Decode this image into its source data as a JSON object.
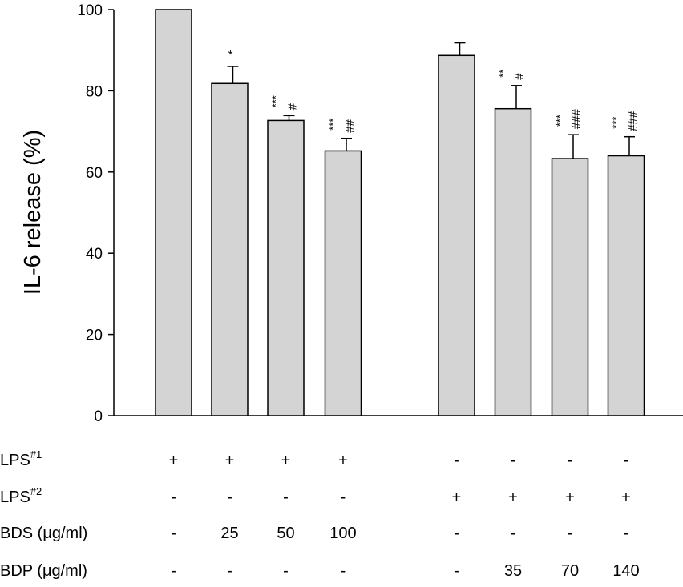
{
  "chart_data": {
    "type": "bar",
    "ylabel": "IL-6 release (%)",
    "ylim": [
      0,
      100
    ],
    "yticks": [
      "0",
      "20",
      "40",
      "60",
      "80",
      "100"
    ],
    "bar_color": "#d4d4d4",
    "grid": false,
    "groups": [
      {
        "bars": [
          {
            "value": 100,
            "error": 0,
            "sig_star": "",
            "sig_hash": ""
          },
          {
            "value": 81.8,
            "error": 4.2,
            "sig_star": "*",
            "sig_hash": ""
          },
          {
            "value": 72.7,
            "error": 1.2,
            "sig_star": "***",
            "sig_hash": "#"
          },
          {
            "value": 65.2,
            "error": 3.1,
            "sig_star": "***",
            "sig_hash": "##"
          }
        ]
      },
      {
        "bars": [
          {
            "value": 88.7,
            "error": 3.1,
            "sig_star": "",
            "sig_hash": ""
          },
          {
            "value": 75.6,
            "error": 5.7,
            "sig_star": "**",
            "sig_hash": "#"
          },
          {
            "value": 63.3,
            "error": 5.9,
            "sig_star": "***",
            "sig_hash": "###"
          },
          {
            "value": 64.0,
            "error": 4.7,
            "sig_star": "***",
            "sig_hash": "###"
          }
        ]
      }
    ],
    "conditions": [
      {
        "label": "LPS",
        "sup": "#1",
        "values": [
          "+",
          "+",
          "+",
          "+",
          "-",
          "-",
          "-",
          "-"
        ]
      },
      {
        "label": "LPS",
        "sup": "#2",
        "values": [
          "-",
          "-",
          "-",
          "-",
          "+",
          "+",
          "+",
          "+"
        ]
      },
      {
        "label": "BDS (μg/ml)",
        "sup": "",
        "values": [
          "-",
          "25",
          "50",
          "100",
          "-",
          "-",
          "-",
          "-"
        ]
      },
      {
        "label": "BDP (μg/ml)",
        "sup": "",
        "values": [
          "-",
          "-",
          "-",
          "-",
          "-",
          "35",
          "70",
          "140"
        ]
      }
    ]
  }
}
